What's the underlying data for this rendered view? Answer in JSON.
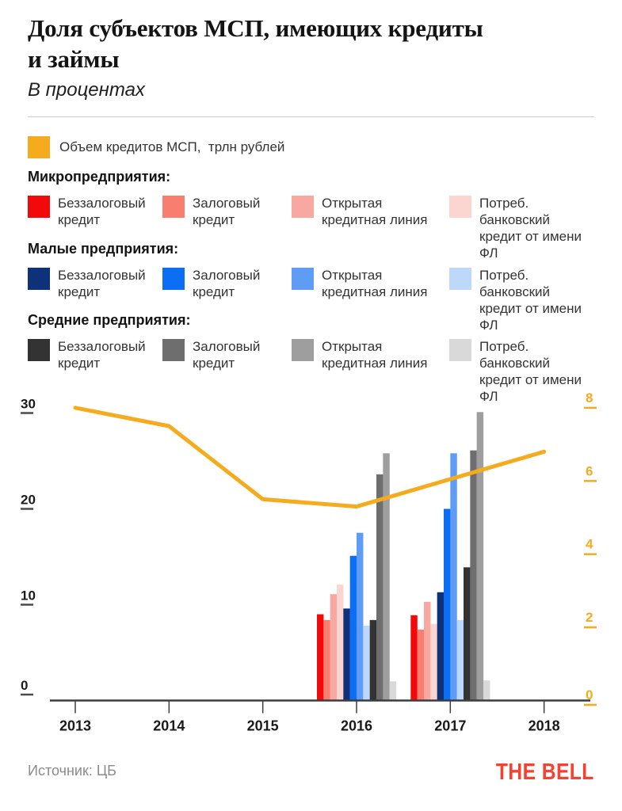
{
  "header": {
    "title_line1": "Доля субъектов МСП, имеющих кредиты",
    "title_line2": "и займы",
    "subtitle": "В процентах"
  },
  "legend": {
    "volume": {
      "label": "Объем кредитов МСП,  трлн рублей",
      "color": "#F5AB1E"
    },
    "groups": [
      {
        "title": "Микропредприятия:",
        "items": [
          {
            "label": "Беззалоговый\nкредит",
            "color": "#F20A0A"
          },
          {
            "label": "Залоговый\nкредит",
            "color": "#F87F70"
          },
          {
            "label": "Открытая\nкредитная линия",
            "color": "#F8A8A0"
          },
          {
            "label": "Потреб. банковский\nкредит от имени ФЛ",
            "color": "#FBD6D1"
          }
        ]
      },
      {
        "title": "Малые предприятия:",
        "items": [
          {
            "label": "Беззалоговый\nкредит",
            "color": "#0E3279"
          },
          {
            "label": "Залоговый\nкредит",
            "color": "#0B6EF5"
          },
          {
            "label": "Открытая\nкредитная линия",
            "color": "#5F9CF6"
          },
          {
            "label": "Потреб. банковский\nкредит от имени ФЛ",
            "color": "#BDD8FB"
          }
        ]
      },
      {
        "title": "Средние предприятия:",
        "items": [
          {
            "label": "Беззалоговый\nкредит",
            "color": "#333333"
          },
          {
            "label": "Залоговый\nкредит",
            "color": "#6E6E6E"
          },
          {
            "label": "Открытая\nкредитная линия",
            "color": "#9E9E9E"
          },
          {
            "label": "Потреб. банковский\nкредит от имени ФЛ",
            "color": "#D9D9D9"
          }
        ]
      }
    ]
  },
  "chart_data": {
    "type": "combo",
    "x_years": [
      "2013",
      "2014",
      "2015",
      "2016",
      "2017",
      "2018"
    ],
    "left_axis": {
      "ticks": [
        "0",
        "10",
        "20",
        "30"
      ],
      "range": [
        0,
        30
      ],
      "color": "#1A1A1A"
    },
    "right_axis": {
      "ticks": [
        "0",
        "2",
        "4",
        "6",
        "8"
      ],
      "range": [
        0,
        8
      ],
      "color": "#F5AB1E"
    },
    "line": {
      "name": "Объем кредитов МСП, трлн рублей",
      "axis": "right",
      "color": "#F5AB1E",
      "values_by_year": [
        8.0,
        7.5,
        5.5,
        5.3,
        6.05,
        6.8
      ]
    },
    "bars": {
      "years": [
        "2016",
        "2017"
      ],
      "series": [
        {
          "group": "Микропредприятия",
          "name": "Беззалоговый кредит",
          "color": "#F20A0A",
          "values": [
            9.0,
            8.9
          ]
        },
        {
          "group": "Микропредприятия",
          "name": "Залоговый кредит",
          "color": "#F87F70",
          "values": [
            8.4,
            7.4
          ]
        },
        {
          "group": "Микропредприятия",
          "name": "Открытая кредитная линия",
          "color": "#F8A8A0",
          "values": [
            11.1,
            10.3
          ]
        },
        {
          "group": "Микропредприятия",
          "name": "Потреб. банковский кредит от имени ФЛ",
          "color": "#FBD6D1",
          "values": [
            12.1,
            8.0
          ]
        },
        {
          "group": "Малые предприятия",
          "name": "Беззалоговый кредит",
          "color": "#0E3279",
          "values": [
            9.6,
            11.3
          ]
        },
        {
          "group": "Малые предприятия",
          "name": "Залоговый кредит",
          "color": "#0B6EF5",
          "values": [
            15.1,
            20.0
          ]
        },
        {
          "group": "Малые предприятия",
          "name": "Открытая кредитная линия",
          "color": "#5F9CF6",
          "values": [
            17.5,
            25.8
          ]
        },
        {
          "group": "Малые предприятия",
          "name": "Потреб. банковский кредит от имени ФЛ",
          "color": "#BDD8FB",
          "values": [
            7.8,
            8.4
          ]
        },
        {
          "group": "Средние предприятия",
          "name": "Беззалоговый кредит",
          "color": "#333333",
          "values": [
            8.4,
            13.9
          ]
        },
        {
          "group": "Средние предприятия",
          "name": "Залоговый кредит",
          "color": "#6E6E6E",
          "values": [
            23.6,
            26.1
          ]
        },
        {
          "group": "Средние предприятия",
          "name": "Открытая кредитная линия",
          "color": "#9E9E9E",
          "values": [
            25.8,
            30.1
          ]
        },
        {
          "group": "Средние предприятия",
          "name": "Потреб. банковский кредит от имени ФЛ",
          "color": "#D9D9D9",
          "values": [
            2.0,
            2.1
          ]
        }
      ]
    }
  },
  "footer": {
    "source": "Источник:  ЦБ",
    "logo": "THE BELL"
  },
  "colors": {
    "accent": "#F5AB1E",
    "logo_red": "#F84030",
    "axis": "#3D3D3D",
    "divider": "#CCCCCC"
  }
}
